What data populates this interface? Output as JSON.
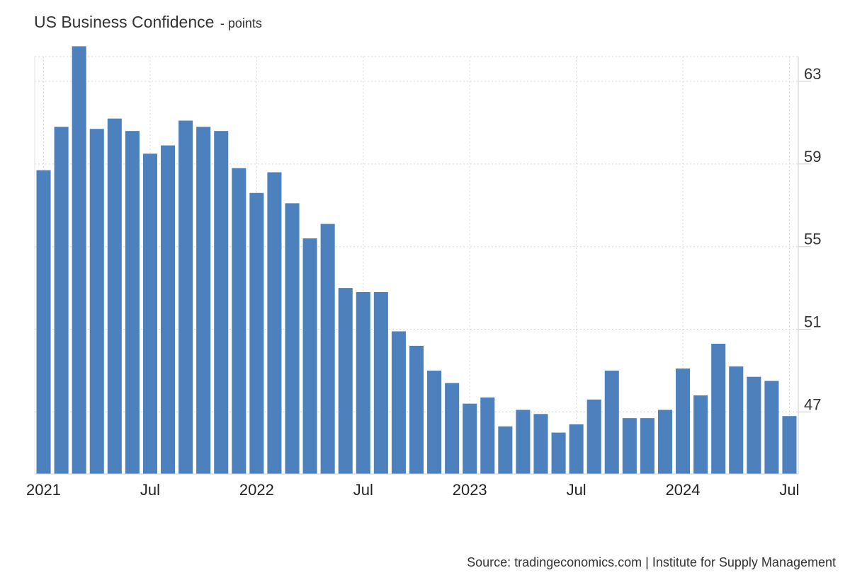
{
  "chart_data": {
    "type": "bar",
    "title": "US Business Confidence",
    "subtitle": "- points",
    "xlabel": "",
    "ylabel": "",
    "source": "Source: tradingeconomics.com | Institute for Supply Management",
    "ylim": [
      44,
      64.2
    ],
    "yticks": [
      47,
      51,
      55,
      59,
      63
    ],
    "y_axis_side": "right",
    "grid": true,
    "legend": "none",
    "bar_color": "#4d81bd",
    "x_tick_labels": [
      {
        "label": "2021",
        "index": 0
      },
      {
        "label": "Jul",
        "index": 6
      },
      {
        "label": "2022",
        "index": 12
      },
      {
        "label": "Jul",
        "index": 18
      },
      {
        "label": "2023",
        "index": 24
      },
      {
        "label": "Jul",
        "index": 30
      },
      {
        "label": "2024",
        "index": 36
      },
      {
        "label": "Jul",
        "index": 42
      }
    ],
    "categories": [
      "Jan 2021",
      "Feb 2021",
      "Mar 2021",
      "Apr 2021",
      "May 2021",
      "Jun 2021",
      "Jul 2021",
      "Aug 2021",
      "Sep 2021",
      "Oct 2021",
      "Nov 2021",
      "Dec 2021",
      "Jan 2022",
      "Feb 2022",
      "Mar 2022",
      "Apr 2022",
      "May 2022",
      "Jun 2022",
      "Jul 2022",
      "Aug 2022",
      "Sep 2022",
      "Oct 2022",
      "Nov 2022",
      "Dec 2022",
      "Jan 2023",
      "Feb 2023",
      "Mar 2023",
      "Apr 2023",
      "May 2023",
      "Jun 2023",
      "Jul 2023",
      "Aug 2023",
      "Sep 2023",
      "Oct 2023",
      "Nov 2023",
      "Dec 2023",
      "Jan 2024",
      "Feb 2024",
      "Mar 2024",
      "Apr 2024",
      "May 2024",
      "Jun 2024",
      "Jul 2024"
    ],
    "values": [
      58.7,
      60.8,
      64.7,
      60.7,
      61.2,
      60.6,
      59.5,
      59.9,
      61.1,
      60.8,
      60.6,
      58.8,
      57.6,
      58.6,
      57.1,
      55.4,
      56.1,
      53.0,
      52.8,
      52.8,
      50.9,
      50.2,
      49.0,
      48.4,
      47.4,
      47.7,
      46.3,
      47.1,
      46.9,
      46.0,
      46.4,
      47.6,
      49.0,
      46.7,
      46.7,
      47.1,
      49.1,
      47.8,
      50.3,
      49.2,
      48.7,
      48.5,
      46.8
    ]
  }
}
